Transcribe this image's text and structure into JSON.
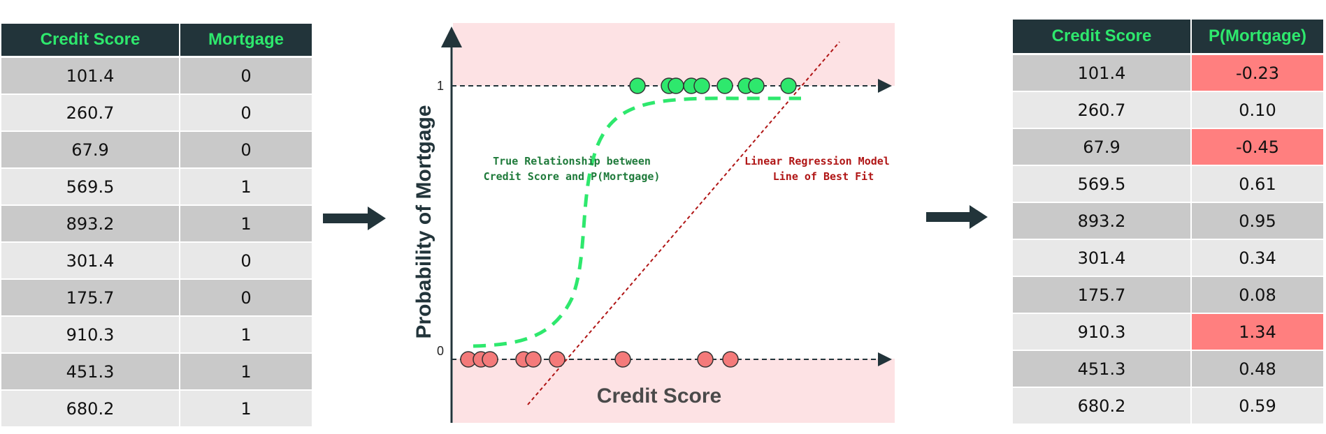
{
  "left_table": {
    "headers": [
      "Credit Score",
      "Mortgage"
    ],
    "rows": [
      [
        "101.4",
        "0"
      ],
      [
        "260.7",
        "0"
      ],
      [
        "67.9",
        "0"
      ],
      [
        "569.5",
        "1"
      ],
      [
        "893.2",
        "1"
      ],
      [
        "301.4",
        "0"
      ],
      [
        "175.7",
        "0"
      ],
      [
        "910.3",
        "1"
      ],
      [
        "451.3",
        "1"
      ],
      [
        "680.2",
        "1"
      ]
    ]
  },
  "right_table": {
    "headers": [
      "Credit Score",
      "P(Mortgage)"
    ],
    "rows": [
      [
        "101.4",
        "-0.23"
      ],
      [
        "260.7",
        "0.10"
      ],
      [
        "67.9",
        "-0.45"
      ],
      [
        "569.5",
        "0.61"
      ],
      [
        "893.2",
        "0.95"
      ],
      [
        "301.4",
        "0.34"
      ],
      [
        "175.7",
        "0.08"
      ],
      [
        "910.3",
        "1.34"
      ],
      [
        "451.3",
        "0.48"
      ],
      [
        "680.2",
        "0.59"
      ]
    ],
    "out_of_range_color": "#ff7f7f"
  },
  "diagram": {
    "y_axis_label": "Probability of Mortgage",
    "x_axis_label": "Credit Score",
    "y_tick_1": "1",
    "y_tick_0": "0",
    "true_relationship_label_line1": "True Relationship between",
    "true_relationship_label_line2": "Credit Score and P(Mortgage)",
    "linear_label_line1": "Linear Regression Model –",
    "linear_label_line2": "Line of Best Fit",
    "colors": {
      "positive_points": "#2ee86d",
      "negative_points": "#f47a7a",
      "sigmoid_curve": "#2ee86d",
      "regression_line": "#b01515",
      "out_of_range_band": "#fde2e4",
      "axis": "#22343a",
      "header_bg": "#22343a",
      "header_text": "#2ee86d"
    },
    "icons": [
      "right-arrow-icon",
      "right-arrow-icon"
    ]
  }
}
